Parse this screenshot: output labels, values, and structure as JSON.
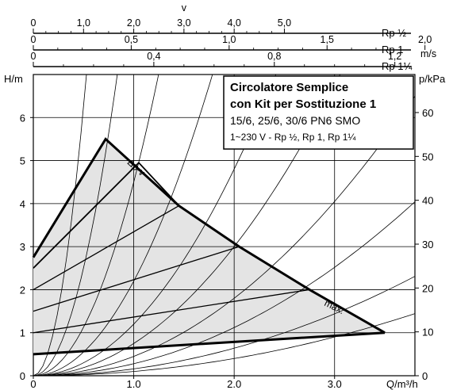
{
  "chart_data": {
    "type": "line",
    "title_lines": [
      "Circolatore Semplice",
      "con Kit per Sostituzione 1",
      "15/6, 25/6, 30/6 PN6 SMO",
      "1~230 V -  Rp ½, Rp 1, Rp 1¼"
    ],
    "xlabel": "Q/m³/h",
    "ylabel_left": "H/m",
    "ylabel_right": "p/kPa",
    "xlim": [
      0,
      3.8
    ],
    "ylim": [
      0,
      7
    ],
    "x_ticks": [
      "0",
      "1.0",
      "2.0",
      "3.0"
    ],
    "y_ticks": [
      "0",
      "1",
      "2",
      "3",
      "4",
      "5",
      "6"
    ],
    "y_right_ticks": [
      "0",
      "10",
      "20",
      "30",
      "40",
      "50",
      "60"
    ],
    "grid": true,
    "top_axes": [
      {
        "label": "Rp ½",
        "unit": "v",
        "ticks": [
          "0",
          "1,0",
          "2,0",
          "3,0",
          "4,0",
          "5,0"
        ],
        "tick_q": [
          0,
          0.5,
          1.0,
          1.5,
          2.0,
          2.5
        ]
      },
      {
        "label": "Rp 1",
        "unit": "",
        "ticks": [
          "0",
          "0,5",
          "1,0",
          "1,5",
          "2,0"
        ],
        "tick_q": [
          0,
          0.975,
          1.95,
          2.925,
          3.9
        ]
      },
      {
        "label": "Rp 1¼",
        "unit": "m/s",
        "ticks": [
          "0",
          "0,4",
          "0,8",
          "1,2"
        ],
        "tick_q": [
          0,
          1.2,
          2.4,
          3.6
        ]
      }
    ],
    "series": [
      {
        "name": "max.",
        "x": [
          0,
          0.72,
          1.45,
          2.05,
          2.75,
          3.5
        ],
        "y": [
          2.75,
          5.5,
          3.95,
          3.0,
          2.0,
          1.0
        ]
      },
      {
        "name": "",
        "x": [
          0,
          3.5
        ],
        "y": [
          0.5,
          1.0
        ]
      },
      {
        "name": "Δp-v",
        "x": [
          0,
          1.05,
          1.45
        ],
        "y": [
          2.5,
          4.95,
          3.95
        ]
      }
    ],
    "control_lines": [
      {
        "x": [
          0,
          1.45
        ],
        "y": [
          2.0,
          3.95
        ]
      },
      {
        "x": [
          0,
          2.05
        ],
        "y": [
          1.5,
          3.0
        ]
      },
      {
        "x": [
          0,
          2.75
        ],
        "y": [
          1.0,
          2.0
        ]
      },
      {
        "x": [
          0,
          3.5
        ],
        "y": [
          0.5,
          1.0
        ]
      }
    ],
    "system_curves_k": [
      25,
      10,
      4.5,
      2.2,
      1.2,
      0.75,
      0.45,
      0.28,
      0.16,
      0.1
    ],
    "annotations": [
      "Δp-v",
      "max."
    ]
  },
  "colors": {
    "fill": "#e4e4e4",
    "line": "#000000",
    "grid": "#000000"
  }
}
